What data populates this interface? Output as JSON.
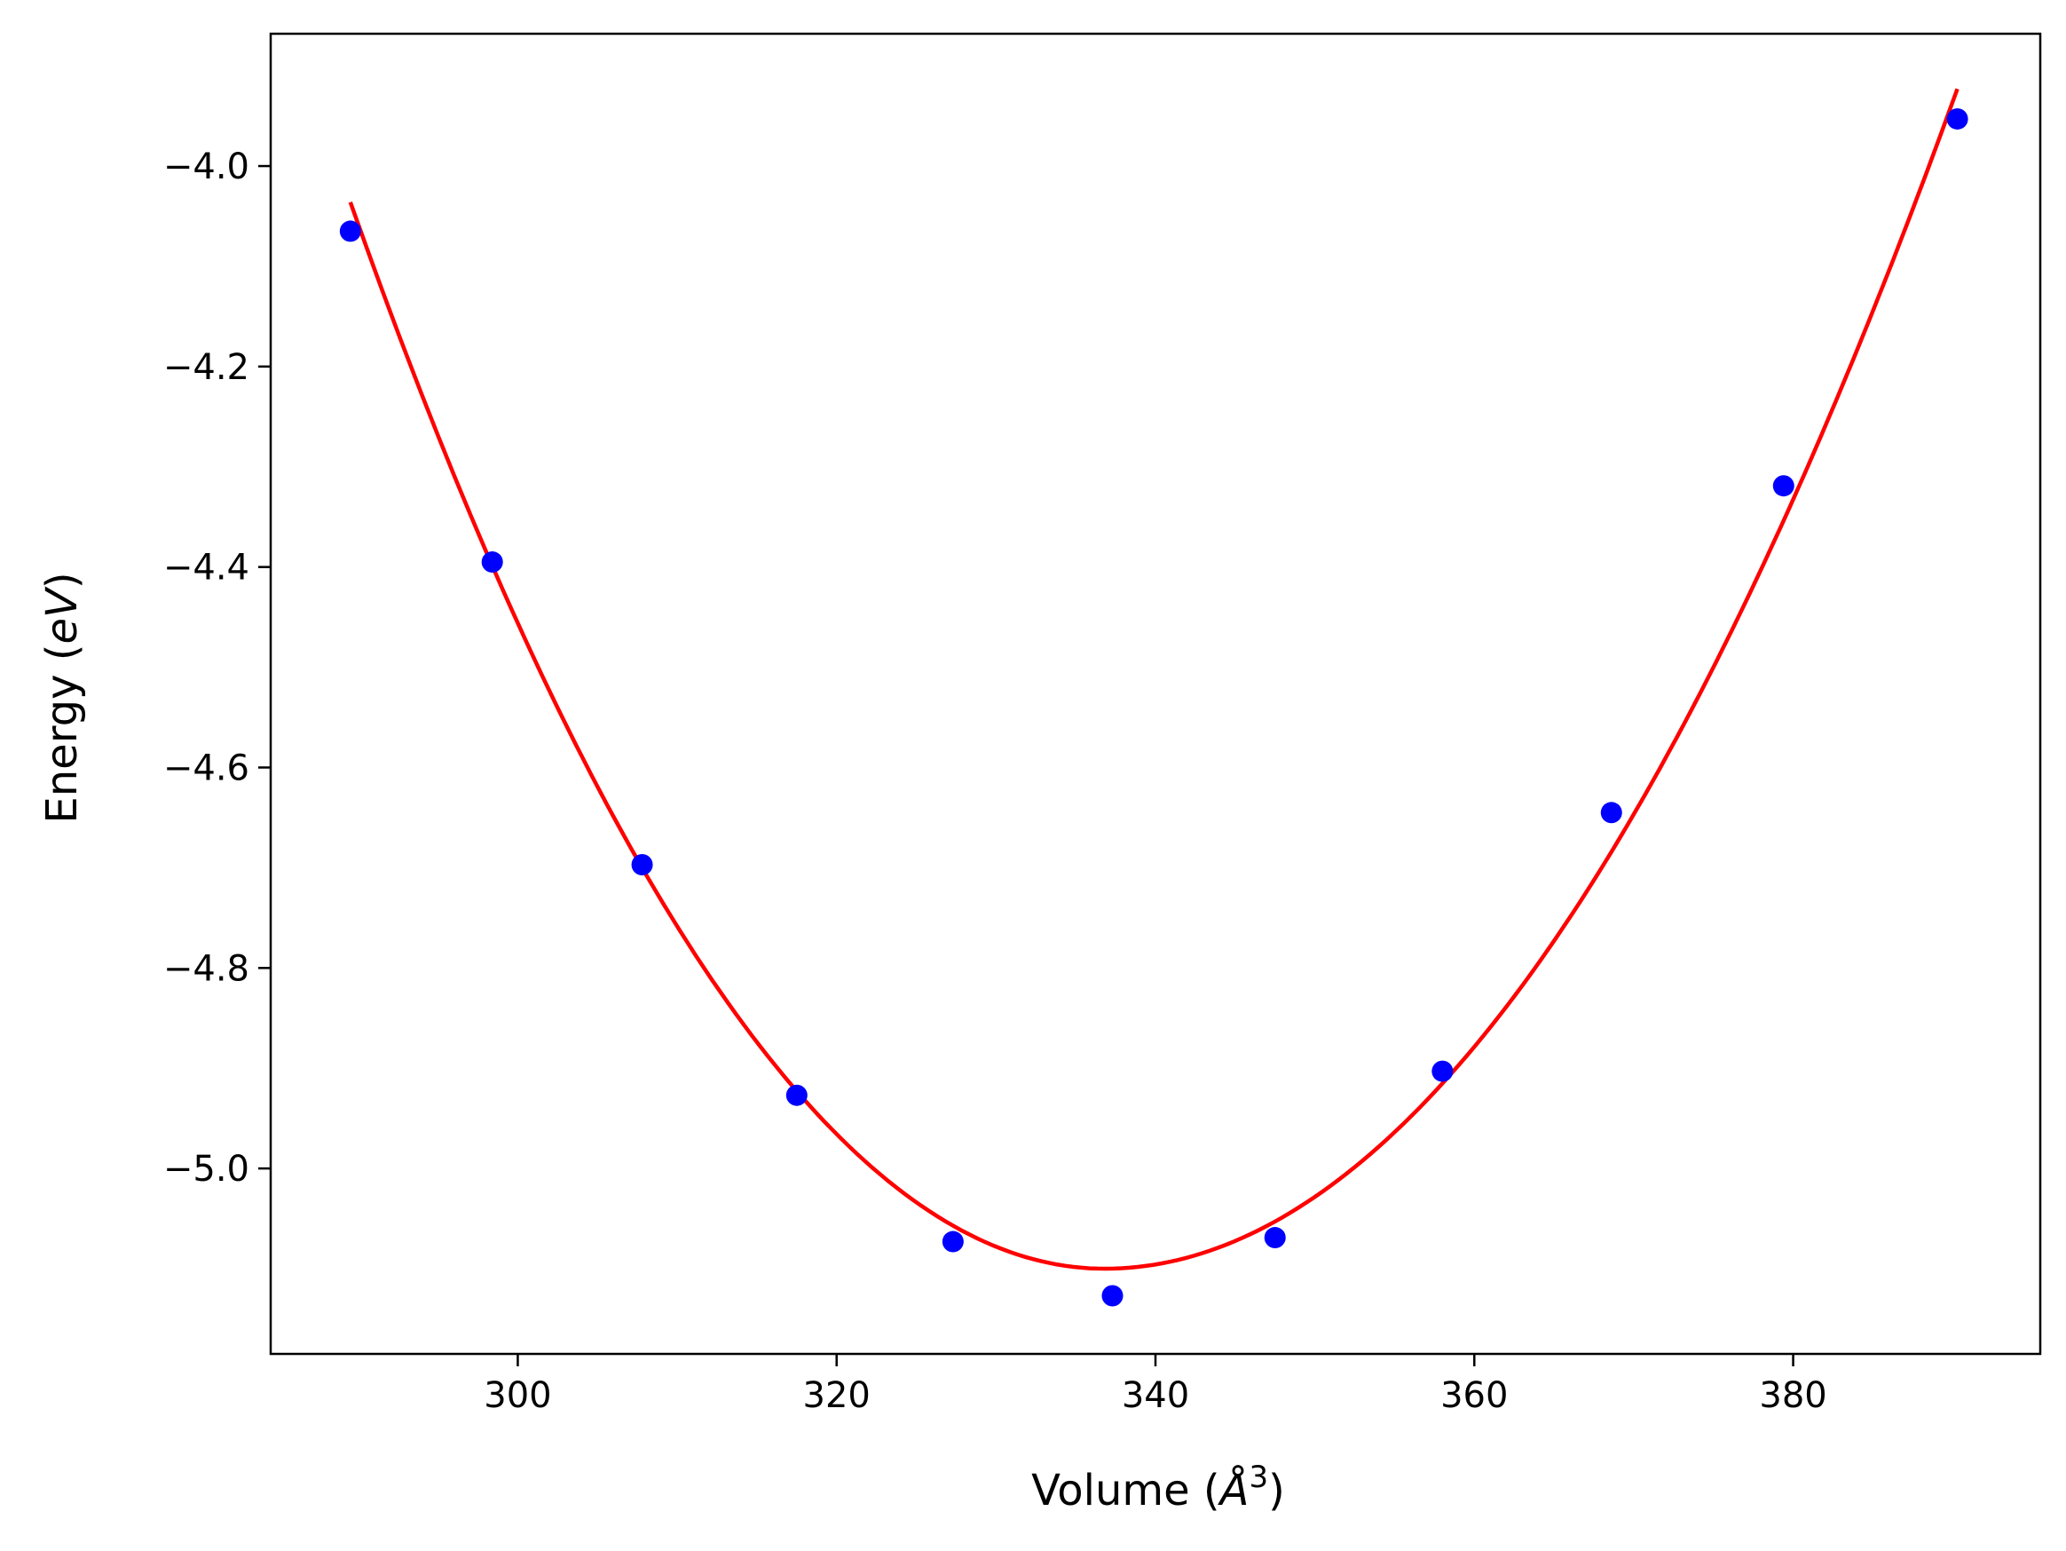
{
  "chart_data": {
    "type": "scatter",
    "title": "",
    "xlabel": "Volume",
    "xlabel_unit_symbol": "Å",
    "xlabel_unit_power": "3",
    "ylabel": "Energy",
    "ylabel_unit": "eV",
    "xlim": [
      284.5,
      395.5
    ],
    "ylim": [
      -5.185,
      -3.868
    ],
    "xticks": [
      300,
      320,
      340,
      360,
      380
    ],
    "xtick_labels": [
      "300",
      "320",
      "340",
      "360",
      "380"
    ],
    "yticks": [
      -4.0,
      -4.2,
      -4.4,
      -4.6,
      -4.8,
      -5.0
    ],
    "ytick_labels": [
      "−4.0",
      "−4.2",
      "−4.4",
      "−4.6",
      "−4.8",
      "−5.0"
    ],
    "grid": false,
    "series": [
      {
        "kind": "points",
        "color": "#0000ff",
        "x": [
          289.5,
          298.4,
          307.8,
          317.5,
          327.3,
          337.3,
          347.5,
          358.0,
          368.6,
          379.4,
          390.3
        ],
        "y": [
          -4.065,
          -4.395,
          -4.697,
          -4.927,
          -5.073,
          -5.127,
          -5.069,
          -4.903,
          -4.645,
          -4.319,
          -3.953
        ]
      },
      {
        "kind": "fit-curve",
        "color": "#ff0000",
        "x_range": [
          289.5,
          390.3
        ],
        "vertex_x": 336.8,
        "vertex_y": -5.1,
        "x": [
          289.5,
          298.4,
          307.8,
          317.5,
          327.3,
          336.8,
          347.5,
          358.0,
          368.6,
          379.4,
          390.3
        ],
        "y": [
          -4.036,
          -4.418,
          -4.729,
          -4.942,
          -5.066,
          -5.1,
          -5.049,
          -4.913,
          -4.694,
          -4.348,
          -3.923
        ]
      }
    ]
  }
}
